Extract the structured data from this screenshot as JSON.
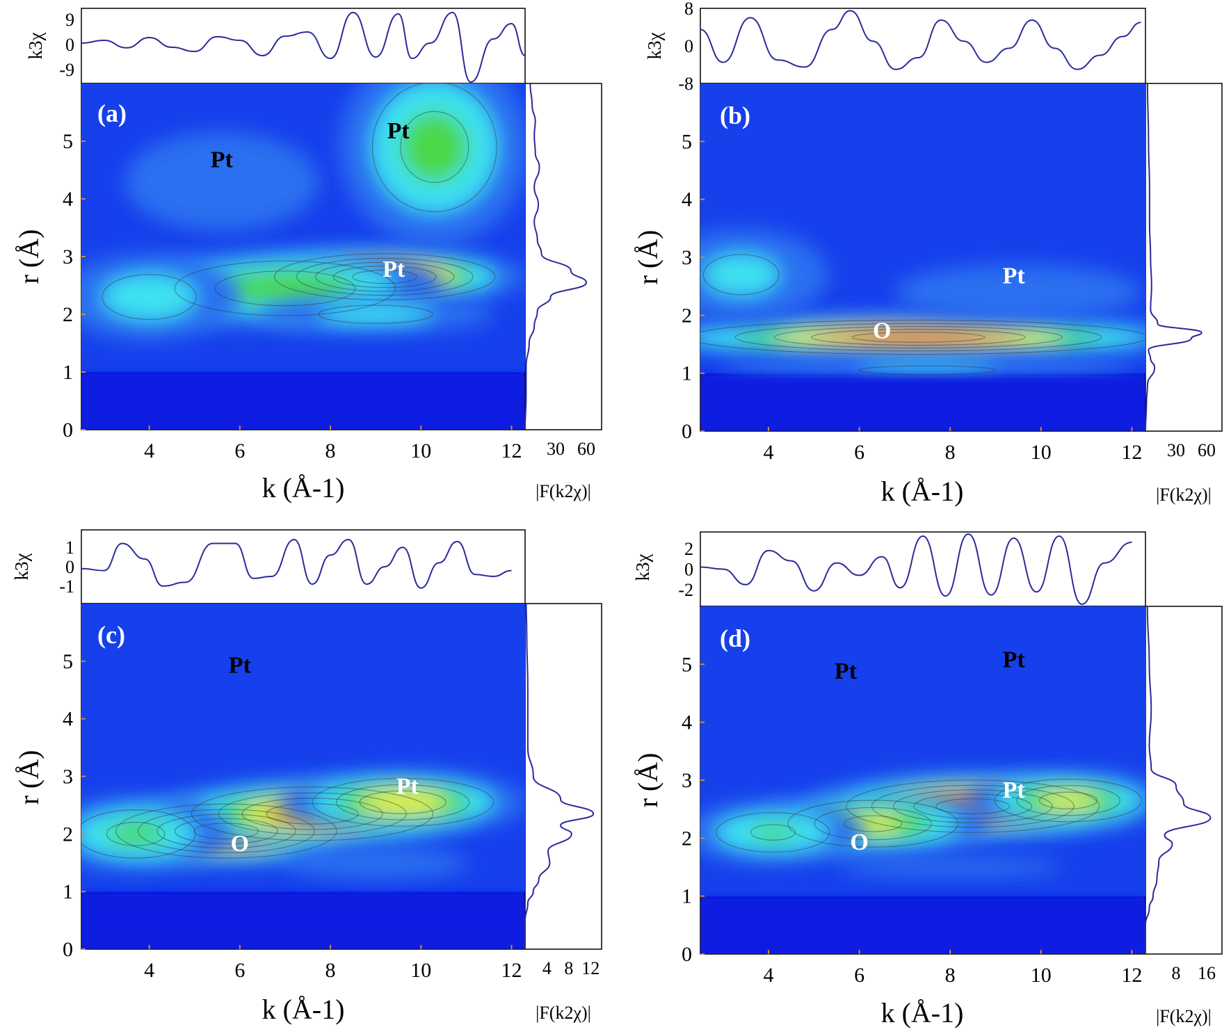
{
  "colors": {
    "map_low": "#0a1fe0",
    "map_mid_blue": "#2a6ff0",
    "map_cyan": "#3de2f0",
    "map_green": "#4cd84c",
    "map_yellow": "#e8f03a",
    "map_orange": "#f08a1c",
    "map_red": "#e2180e",
    "signal_line": "#2a2a9a",
    "annotation_dark": "#000000",
    "annotation_light": "#ffffff"
  },
  "chart_data": [
    {
      "type": "heatmap",
      "panel": "(a)",
      "xlabel": "k (Å-1)",
      "ylabel": "r (Å)",
      "xlim": [
        2.5,
        12.3
      ],
      "ylim": [
        0,
        6
      ],
      "x_ticks": [
        "4",
        "6",
        "8",
        "10",
        "12"
      ],
      "y_ticks": [
        "0",
        "1",
        "2",
        "3",
        "4",
        "5"
      ],
      "top_ylabel": "k3χ",
      "top_ticks": [
        "9",
        "0",
        "-9"
      ],
      "top_ylim": [
        -14,
        13
      ],
      "right_xlabel": "|F(k2χ)|",
      "right_ticks": [
        "30",
        "60"
      ],
      "right_xlim": [
        0,
        75
      ],
      "hotspots": [
        {
          "k": 9.2,
          "r": 2.65,
          "intensity": 1.0,
          "sk": 1.4,
          "sr": 0.23
        },
        {
          "k": 7.0,
          "r": 2.45,
          "intensity": 0.55,
          "sk": 1.8,
          "sr": 0.35
        },
        {
          "k": 10.3,
          "r": 4.9,
          "intensity": 0.48,
          "sk": 1.1,
          "sr": 0.9
        },
        {
          "k": 5.6,
          "r": 4.3,
          "intensity": 0.22,
          "sk": 1.5,
          "sr": 0.6
        },
        {
          "k": 4.0,
          "r": 2.3,
          "intensity": 0.32,
          "sk": 1.2,
          "sr": 0.45
        },
        {
          "k": 9.0,
          "r": 2.0,
          "intensity": 0.3,
          "sk": 1.6,
          "sr": 0.2
        }
      ],
      "annotations": [
        {
          "text": "Pt",
          "k": 5.6,
          "r": 4.55,
          "color": "dark"
        },
        {
          "text": "Pt",
          "k": 9.5,
          "r": 5.05,
          "color": "dark"
        },
        {
          "text": "Pt",
          "k": 9.4,
          "r": 2.65,
          "color": "light"
        }
      ],
      "top_signal": [
        [
          2.5,
          0.5
        ],
        [
          3.0,
          1.5
        ],
        [
          3.5,
          -1.2
        ],
        [
          4.0,
          2.5
        ],
        [
          4.5,
          -1.0
        ],
        [
          5.0,
          -2.5
        ],
        [
          5.5,
          2.8
        ],
        [
          6.0,
          1.5
        ],
        [
          6.5,
          -4.0
        ],
        [
          7.0,
          3.0
        ],
        [
          7.5,
          4.5
        ],
        [
          8.0,
          -5.0
        ],
        [
          8.5,
          11.5
        ],
        [
          9.0,
          -4.5
        ],
        [
          9.5,
          11.0
        ],
        [
          9.8,
          -5.0
        ],
        [
          10.2,
          0.5
        ],
        [
          10.7,
          11.5
        ],
        [
          11.1,
          -13.5
        ],
        [
          11.6,
          2.0
        ],
        [
          12.0,
          7.5
        ],
        [
          12.3,
          -4.0
        ]
      ],
      "right_signal": [
        [
          0,
          0
        ],
        [
          0.6,
          1
        ],
        [
          1.1,
          1
        ],
        [
          1.5,
          4
        ],
        [
          1.8,
          9
        ],
        [
          2.05,
          12
        ],
        [
          2.3,
          25
        ],
        [
          2.55,
          60
        ],
        [
          2.75,
          45
        ],
        [
          3.05,
          16
        ],
        [
          3.3,
          12
        ],
        [
          3.6,
          9
        ],
        [
          3.9,
          13
        ],
        [
          4.2,
          9
        ],
        [
          4.55,
          14
        ],
        [
          4.8,
          10
        ],
        [
          5.1,
          9
        ],
        [
          5.35,
          10
        ],
        [
          5.6,
          7
        ],
        [
          6.0,
          5
        ]
      ]
    },
    {
      "type": "heatmap",
      "panel": "(b)",
      "xlabel": "k (Å-1)",
      "ylabel": "r (Å)",
      "xlim": [
        2.5,
        12.3
      ],
      "ylim": [
        0,
        6
      ],
      "x_ticks": [
        "4",
        "6",
        "8",
        "10",
        "12"
      ],
      "y_ticks": [
        "0",
        "1",
        "2",
        "3",
        "4",
        "5"
      ],
      "top_ylabel": "k3χ",
      "top_ticks": [
        "8",
        "0",
        "-8"
      ],
      "top_ylim": [
        -8,
        8
      ],
      "right_xlabel": "|F(k2χ)|",
      "right_ticks": [
        "30",
        "60"
      ],
      "right_xlim": [
        0,
        75
      ],
      "hotspots": [
        {
          "k": 7.3,
          "r": 1.62,
          "intensity": 1.0,
          "sk": 2.9,
          "sr": 0.17
        },
        {
          "k": 3.4,
          "r": 2.7,
          "intensity": 0.28,
          "sk": 1.2,
          "sr": 0.5
        },
        {
          "k": 9.5,
          "r": 2.4,
          "intensity": 0.2,
          "sk": 2.0,
          "sr": 0.35
        },
        {
          "k": 7.5,
          "r": 1.05,
          "intensity": 0.25,
          "sk": 3.0,
          "sr": 0.15
        }
      ],
      "annotations": [
        {
          "text": "O",
          "k": 6.5,
          "r": 1.6,
          "color": "light"
        },
        {
          "text": "Pt",
          "k": 9.4,
          "r": 2.55,
          "color": "light"
        }
      ],
      "top_signal": [
        [
          2.5,
          3.5
        ],
        [
          3.0,
          -3.5
        ],
        [
          3.6,
          6.0
        ],
        [
          4.2,
          -3.0
        ],
        [
          4.8,
          -4.5
        ],
        [
          5.4,
          3.5
        ],
        [
          5.8,
          7.5
        ],
        [
          6.3,
          1.0
        ],
        [
          6.8,
          -5.0
        ],
        [
          7.3,
          -2.5
        ],
        [
          7.8,
          5.5
        ],
        [
          8.3,
          1.0
        ],
        [
          8.8,
          -3.5
        ],
        [
          9.3,
          -0.5
        ],
        [
          9.8,
          5.5
        ],
        [
          10.3,
          -0.5
        ],
        [
          10.8,
          -5.0
        ],
        [
          11.3,
          -2.0
        ],
        [
          11.8,
          2.0
        ],
        [
          12.2,
          5.0
        ]
      ],
      "right_signal": [
        [
          0,
          0
        ],
        [
          0.5,
          1
        ],
        [
          0.8,
          2
        ],
        [
          1.1,
          9
        ],
        [
          1.25,
          5
        ],
        [
          1.4,
          3
        ],
        [
          1.6,
          45
        ],
        [
          1.7,
          55
        ],
        [
          1.85,
          12
        ],
        [
          2.1,
          5
        ],
        [
          2.5,
          6
        ],
        [
          3.0,
          5
        ],
        [
          3.6,
          4
        ],
        [
          4.2,
          4
        ],
        [
          5.0,
          3
        ],
        [
          6.0,
          2
        ]
      ]
    },
    {
      "type": "heatmap",
      "panel": "(c)",
      "xlabel": "k (Å-1)",
      "ylabel": "r (Å)",
      "xlim": [
        2.5,
        12.3
      ],
      "ylim": [
        0,
        6
      ],
      "x_ticks": [
        "4",
        "6",
        "8",
        "10",
        "12"
      ],
      "y_ticks": [
        "0",
        "1",
        "2",
        "3",
        "4",
        "5"
      ],
      "top_ylabel": "k3χ",
      "top_ticks": [
        "1",
        "0",
        "-1"
      ],
      "top_ylim": [
        -1.9,
        1.9
      ],
      "right_xlabel": "|F(k2χ)|",
      "right_ticks": [
        "4",
        "8",
        "12"
      ],
      "right_xlim": [
        0,
        14
      ],
      "hotspots": [
        {
          "k": 5.7,
          "r": 2.05,
          "intensity": 1.0,
          "sk": 1.4,
          "sr": 0.27
        },
        {
          "k": 7.6,
          "r": 2.35,
          "intensity": 0.88,
          "sk": 1.6,
          "sr": 0.28
        },
        {
          "k": 9.6,
          "r": 2.55,
          "intensity": 0.72,
          "sk": 1.3,
          "sr": 0.27
        },
        {
          "k": 3.7,
          "r": 2.0,
          "intensity": 0.45,
          "sk": 1.1,
          "sr": 0.35
        },
        {
          "k": 9.0,
          "r": 1.5,
          "intensity": 0.2,
          "sk": 1.5,
          "sr": 0.2
        },
        {
          "k": 5.0,
          "r": 4.3,
          "intensity": 0.07,
          "sk": 2.0,
          "sr": 0.6
        }
      ],
      "annotations": [
        {
          "text": "Pt",
          "k": 6.0,
          "r": 4.8,
          "color": "dark"
        },
        {
          "text": "Pt",
          "k": 9.7,
          "r": 2.7,
          "color": "light"
        },
        {
          "text": "O",
          "k": 6.0,
          "r": 1.7,
          "color": "light"
        }
      ],
      "top_signal": [
        [
          2.5,
          -0.1
        ],
        [
          3.0,
          -0.2
        ],
        [
          3.4,
          1.2
        ],
        [
          3.9,
          0.4
        ],
        [
          4.3,
          -1.0
        ],
        [
          4.8,
          -0.8
        ],
        [
          5.4,
          1.2
        ],
        [
          5.9,
          1.2
        ],
        [
          6.3,
          -0.6
        ],
        [
          6.7,
          -0.5
        ],
        [
          7.2,
          1.4
        ],
        [
          7.6,
          -0.9
        ],
        [
          8.0,
          0.6
        ],
        [
          8.4,
          1.4
        ],
        [
          8.8,
          -0.9
        ],
        [
          9.2,
          0.0
        ],
        [
          9.6,
          1.0
        ],
        [
          10.0,
          -1.1
        ],
        [
          10.4,
          0.2
        ],
        [
          10.8,
          1.3
        ],
        [
          11.2,
          -0.4
        ],
        [
          11.6,
          -0.5
        ],
        [
          12.0,
          -0.2
        ]
      ],
      "right_signal": [
        [
          0,
          0
        ],
        [
          0.5,
          0
        ],
        [
          0.8,
          0.5
        ],
        [
          1.0,
          1.5
        ],
        [
          1.2,
          2.5
        ],
        [
          1.5,
          4.5
        ],
        [
          1.7,
          4.2
        ],
        [
          2.0,
          8.5
        ],
        [
          2.15,
          6.5
        ],
        [
          2.35,
          12.5
        ],
        [
          2.6,
          6.5
        ],
        [
          3.0,
          1.5
        ],
        [
          3.5,
          0.5
        ],
        [
          4.5,
          0.5
        ],
        [
          5.5,
          0.3
        ],
        [
          6.0,
          0.2
        ]
      ]
    },
    {
      "type": "heatmap",
      "panel": "(d)",
      "xlabel": "k (Å-1)",
      "ylabel": "r (Å)",
      "xlim": [
        2.5,
        12.3
      ],
      "ylim": [
        0,
        6
      ],
      "x_ticks": [
        "4",
        "6",
        "8",
        "10",
        "12"
      ],
      "y_ticks": [
        "0",
        "1",
        "2",
        "3",
        "4",
        "5"
      ],
      "top_ylabel": "k3χ",
      "top_ticks": [
        "2",
        "0",
        "-2"
      ],
      "top_ylim": [
        -3.6,
        3.6
      ],
      "right_xlabel": "|F(k2χ)|",
      "right_ticks": [
        "8",
        "16"
      ],
      "right_xlim": [
        0,
        20
      ],
      "hotspots": [
        {
          "k": 8.5,
          "r": 2.55,
          "intensity": 1.0,
          "sk": 1.6,
          "sr": 0.26
        },
        {
          "k": 10.6,
          "r": 2.65,
          "intensity": 0.65,
          "sk": 1.1,
          "sr": 0.25
        },
        {
          "k": 6.3,
          "r": 2.25,
          "intensity": 0.62,
          "sk": 1.3,
          "sr": 0.28
        },
        {
          "k": 4.1,
          "r": 2.1,
          "intensity": 0.42,
          "sk": 1.1,
          "sr": 0.3
        },
        {
          "k": 8.0,
          "r": 1.5,
          "intensity": 0.15,
          "sk": 2.2,
          "sr": 0.15
        },
        {
          "k": 8.5,
          "r": 4.4,
          "intensity": 0.08,
          "sk": 2.5,
          "sr": 0.7
        }
      ],
      "annotations": [
        {
          "text": "Pt",
          "k": 5.7,
          "r": 4.75,
          "color": "dark"
        },
        {
          "text": "Pt",
          "k": 9.4,
          "r": 4.95,
          "color": "dark"
        },
        {
          "text": "Pt",
          "k": 9.4,
          "r": 2.7,
          "color": "light"
        },
        {
          "text": "O",
          "k": 6.0,
          "r": 1.8,
          "color": "light"
        }
      ],
      "top_signal": [
        [
          2.5,
          0.2
        ],
        [
          3.0,
          0.0
        ],
        [
          3.5,
          -1.5
        ],
        [
          4.0,
          1.8
        ],
        [
          4.5,
          0.8
        ],
        [
          5.0,
          -2.1
        ],
        [
          5.5,
          0.6
        ],
        [
          6.0,
          -0.6
        ],
        [
          6.5,
          1.2
        ],
        [
          6.9,
          -1.8
        ],
        [
          7.4,
          3.2
        ],
        [
          7.9,
          -2.6
        ],
        [
          8.4,
          3.4
        ],
        [
          8.9,
          -2.5
        ],
        [
          9.4,
          3.0
        ],
        [
          9.9,
          -2.2
        ],
        [
          10.4,
          3.2
        ],
        [
          10.9,
          -3.4
        ],
        [
          11.4,
          0.6
        ],
        [
          12.0,
          2.6
        ]
      ],
      "right_signal": [
        [
          0,
          0
        ],
        [
          0.5,
          0
        ],
        [
          0.8,
          1
        ],
        [
          1.0,
          2
        ],
        [
          1.3,
          3
        ],
        [
          1.6,
          3.5
        ],
        [
          1.9,
          7
        ],
        [
          2.05,
          5
        ],
        [
          2.35,
          17
        ],
        [
          2.6,
          10
        ],
        [
          2.9,
          8
        ],
        [
          3.2,
          1.5
        ],
        [
          3.6,
          1
        ],
        [
          4.2,
          1.5
        ],
        [
          5.0,
          1
        ],
        [
          6.0,
          0.5
        ]
      ]
    }
  ]
}
